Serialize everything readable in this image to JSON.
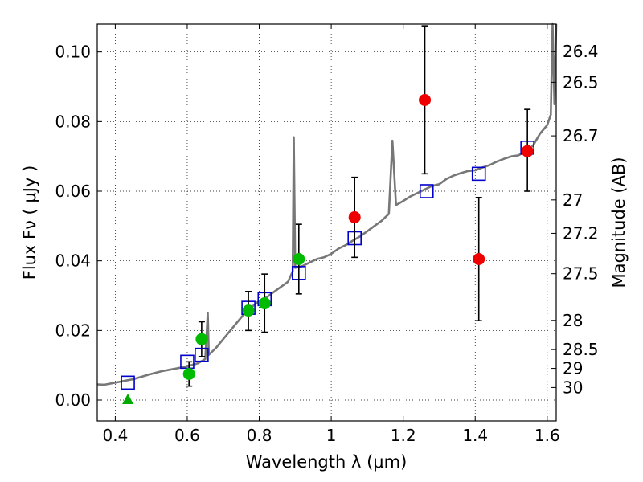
{
  "chart_data": {
    "type": "scatter",
    "xlabel": "Wavelength  λ (μm)",
    "ylabel": "Flux  Fν  ( μJy )",
    "ylabel_right": "Magnitude (AB)",
    "xlim": [
      0.35,
      1.625
    ],
    "ylim": [
      -0.006,
      0.108
    ],
    "grid": true,
    "x_ticks": [
      0.4,
      0.6,
      0.8,
      1.0,
      1.2,
      1.4,
      1.6
    ],
    "x_tick_labels": [
      "0.4",
      "0.6",
      "0.8",
      "1",
      "1.2",
      "1.4",
      "1.6"
    ],
    "y_ticks": [
      0.0,
      0.02,
      0.04,
      0.06,
      0.08,
      0.1
    ],
    "y_tick_labels": [
      "0.00",
      "0.02",
      "0.04",
      "0.06",
      "0.08",
      "0.10"
    ],
    "right_ticks": [
      {
        "label": "26.4",
        "flux": 0.1001
      },
      {
        "label": "26.5",
        "flux": 0.0913
      },
      {
        "label": "26.7",
        "flux": 0.0759
      },
      {
        "label": "27",
        "flux": 0.0575
      },
      {
        "label": "27.2",
        "flux": 0.0479
      },
      {
        "label": "27.5",
        "flux": 0.0363
      },
      {
        "label": "28",
        "flux": 0.0229
      },
      {
        "label": "28.5",
        "flux": 0.0145
      },
      {
        "label": "29",
        "flux": 0.0091
      },
      {
        "label": "30",
        "flux": 0.0036
      }
    ],
    "series": [
      {
        "type": "line",
        "color": "#777777",
        "points": [
          [
            0.35,
            0.0045
          ],
          [
            0.37,
            0.0044
          ],
          [
            0.39,
            0.0048
          ],
          [
            0.41,
            0.0052
          ],
          [
            0.43,
            0.0056
          ],
          [
            0.45,
            0.006
          ],
          [
            0.47,
            0.0066
          ],
          [
            0.49,
            0.0072
          ],
          [
            0.51,
            0.0078
          ],
          [
            0.53,
            0.0083
          ],
          [
            0.55,
            0.0087
          ],
          [
            0.57,
            0.0091
          ],
          [
            0.59,
            0.0095
          ],
          [
            0.61,
            0.01
          ],
          [
            0.63,
            0.0106
          ],
          [
            0.65,
            0.0118
          ],
          [
            0.657,
            0.025
          ],
          [
            0.66,
            0.013
          ],
          [
            0.68,
            0.015
          ],
          [
            0.7,
            0.0175
          ],
          [
            0.72,
            0.02
          ],
          [
            0.74,
            0.0225
          ],
          [
            0.76,
            0.025
          ],
          [
            0.78,
            0.0268
          ],
          [
            0.8,
            0.0285
          ],
          [
            0.82,
            0.0295
          ],
          [
            0.84,
            0.031
          ],
          [
            0.86,
            0.0325
          ],
          [
            0.88,
            0.034
          ],
          [
            0.893,
            0.037
          ],
          [
            0.896,
            0.0755
          ],
          [
            0.9,
            0.038
          ],
          [
            0.92,
            0.0385
          ],
          [
            0.94,
            0.0395
          ],
          [
            0.96,
            0.0405
          ],
          [
            0.98,
            0.041
          ],
          [
            1.0,
            0.042
          ],
          [
            1.02,
            0.0435
          ],
          [
            1.04,
            0.0445
          ],
          [
            1.06,
            0.0458
          ],
          [
            1.08,
            0.047
          ],
          [
            1.1,
            0.0485
          ],
          [
            1.12,
            0.05
          ],
          [
            1.14,
            0.0515
          ],
          [
            1.16,
            0.0535
          ],
          [
            1.17,
            0.0745
          ],
          [
            1.18,
            0.056
          ],
          [
            1.2,
            0.0572
          ],
          [
            1.22,
            0.0585
          ],
          [
            1.24,
            0.0595
          ],
          [
            1.26,
            0.0605
          ],
          [
            1.28,
            0.0615
          ],
          [
            1.3,
            0.062
          ],
          [
            1.32,
            0.0635
          ],
          [
            1.34,
            0.0645
          ],
          [
            1.36,
            0.0652
          ],
          [
            1.38,
            0.0658
          ],
          [
            1.4,
            0.066
          ],
          [
            1.42,
            0.0668
          ],
          [
            1.44,
            0.0675
          ],
          [
            1.46,
            0.0685
          ],
          [
            1.48,
            0.0693
          ],
          [
            1.5,
            0.07
          ],
          [
            1.52,
            0.0703
          ],
          [
            1.54,
            0.0715
          ],
          [
            1.56,
            0.073
          ],
          [
            1.58,
            0.0765
          ],
          [
            1.6,
            0.079
          ],
          [
            1.61,
            0.082
          ],
          [
            1.615,
            0.108
          ],
          [
            1.62,
            0.085
          ],
          [
            1.625,
            0.108
          ]
        ]
      },
      {
        "type": "open-square",
        "color": "#0000cc",
        "points": [
          [
            0.435,
            0.005
          ],
          [
            0.6,
            0.011
          ],
          [
            0.64,
            0.013
          ],
          [
            0.77,
            0.0265
          ],
          [
            0.815,
            0.029
          ],
          [
            0.91,
            0.0365
          ],
          [
            1.065,
            0.0465
          ],
          [
            1.265,
            0.06
          ],
          [
            1.41,
            0.065
          ],
          [
            1.545,
            0.0725
          ]
        ]
      },
      {
        "type": "filled-circle",
        "color": "#00bb00",
        "points": [
          {
            "x": 0.605,
            "y": 0.0075,
            "err": [
              0.004,
              0.011
            ]
          },
          {
            "x": 0.64,
            "y": 0.0175,
            "err": [
              0.0125,
              0.0225
            ]
          },
          {
            "x": 0.77,
            "y": 0.0257,
            "err": [
              0.02,
              0.0312
            ]
          },
          {
            "x": 0.815,
            "y": 0.0278,
            "err": [
              0.0195,
              0.0362
            ]
          },
          {
            "x": 0.91,
            "y": 0.0405,
            "err": [
              0.0305,
              0.0505
            ]
          }
        ]
      },
      {
        "type": "filled-circle",
        "color": "#ee0000",
        "points": [
          {
            "x": 1.065,
            "y": 0.0525,
            "err": [
              0.041,
              0.064
            ]
          },
          {
            "x": 1.26,
            "y": 0.0862,
            "err": [
              0.065,
              0.1075
            ]
          },
          {
            "x": 1.41,
            "y": 0.0405,
            "err": [
              0.0228,
              0.0582
            ]
          },
          {
            "x": 1.545,
            "y": 0.0715,
            "err": [
              0.06,
              0.0835
            ]
          }
        ]
      },
      {
        "type": "triangle",
        "color": "#00aa00",
        "points": [
          [
            0.435,
            0.0
          ]
        ]
      }
    ]
  }
}
